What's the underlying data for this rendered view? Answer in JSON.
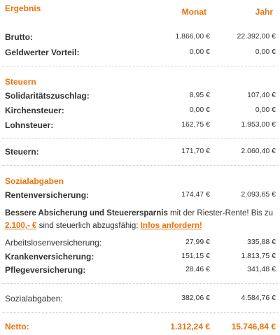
{
  "header": {
    "title": "Ergebnis",
    "col_month": "Monat",
    "col_year": "Jahr"
  },
  "rows_top": [
    {
      "label": "Brutto:",
      "month": "1.866,00 €",
      "year": "22.392,00 €"
    },
    {
      "label": "Geldwerter Vorteil:",
      "month": "0,00 €",
      "year": "0,00 €"
    }
  ],
  "steuern": {
    "title": "Steuern",
    "rows": [
      {
        "label": "Solidaritätszuschlag:",
        "month": "8,95 €",
        "year": "107,40 €"
      },
      {
        "label": "Kirchensteuer:",
        "month": "0,00 €",
        "year": "0,00 €"
      },
      {
        "label": "Lohnsteuer:",
        "month": "162,75 €",
        "year": "1.953,00 €"
      }
    ],
    "total": {
      "label": "Steuern:",
      "month": "171,70 €",
      "year": "2.060,40 €"
    }
  },
  "sozial": {
    "title": "Sozialabgaben",
    "rente": {
      "label": "Rentenversicherung:",
      "month": "174,47 €",
      "year": "2.093,65 €"
    },
    "promo": {
      "bold": "Bessere Absicherung und Steuerersparnis",
      "text1": " mit der Riester-Rente! Bis zu ",
      "amount": "2.100,- €",
      "text2": " sind steuerlich abzugsfähig: ",
      "link": "Infos anfordern!"
    },
    "rows": [
      {
        "label": "Arbeitslosenversicherung:",
        "month": "27,99 €",
        "year": "335,88 €"
      },
      {
        "label": "Krankenversicherung:",
        "month": "151,15 €",
        "year": "1.813,75 €"
      },
      {
        "label": "Pflegeversicherung:",
        "month": "28,46 €",
        "year": "341,48 €"
      }
    ],
    "total": {
      "label": "Sozialabgaben:",
      "month": "382,06 €",
      "year": "4.584,76 €"
    }
  },
  "netto": {
    "label": "Netto:",
    "month": "1.312,24 €",
    "year": "15.746,84 €"
  },
  "colors": {
    "accent": "#e8730c",
    "text": "#333333",
    "separator": "#c9c9c9"
  }
}
